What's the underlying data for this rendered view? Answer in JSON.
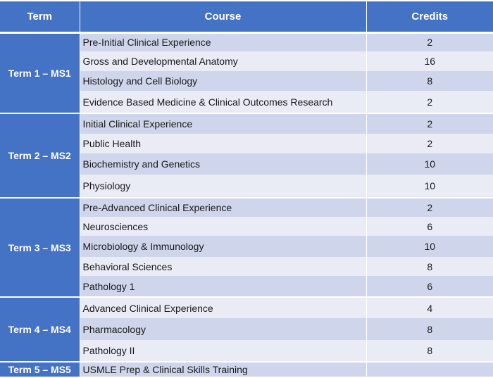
{
  "headers": {
    "term": "Term",
    "course": "Course",
    "credits": "Credits"
  },
  "terms": [
    {
      "label": "Term 1 – MS1",
      "courses": [
        {
          "name": "Pre-Initial Clinical Experience",
          "credits": "2"
        },
        {
          "name": "Gross and Developmental Anatomy",
          "credits": "16"
        },
        {
          "name": "Histology and Cell Biology",
          "credits": "8"
        },
        {
          "name": "Evidence Based Medicine & Clinical Outcomes Research",
          "credits": "2"
        }
      ]
    },
    {
      "label": "Term 2 – MS2",
      "courses": [
        {
          "name": "Initial Clinical Experience",
          "credits": "2"
        },
        {
          "name": "Public Health",
          "credits": "2"
        },
        {
          "name": "Biochemistry and Genetics",
          "credits": "10"
        },
        {
          "name": "Physiology",
          "credits": "10"
        }
      ]
    },
    {
      "label": "Term 3 – MS3",
      "courses": [
        {
          "name": "Pre-Advanced Clinical Experience",
          "credits": "2"
        },
        {
          "name": "Neurosciences",
          "credits": "6"
        },
        {
          "name": "Microbiology & Immunology",
          "credits": "10"
        },
        {
          "name": "Behavioral Sciences",
          "credits": "8"
        },
        {
          "name": "Pathology 1",
          "credits": "6"
        }
      ]
    },
    {
      "label": "Term 4 – MS4",
      "courses": [
        {
          "name": "Advanced Clinical Experience",
          "credits": "4"
        },
        {
          "name": "Pharmacology",
          "credits": "8"
        },
        {
          "name": "Pathology II",
          "credits": "8"
        }
      ]
    },
    {
      "label": "Term 5 – MS5",
      "courses": [
        {
          "name": "USMLE Prep & Clinical Skills Training",
          "credits": ""
        }
      ]
    }
  ]
}
